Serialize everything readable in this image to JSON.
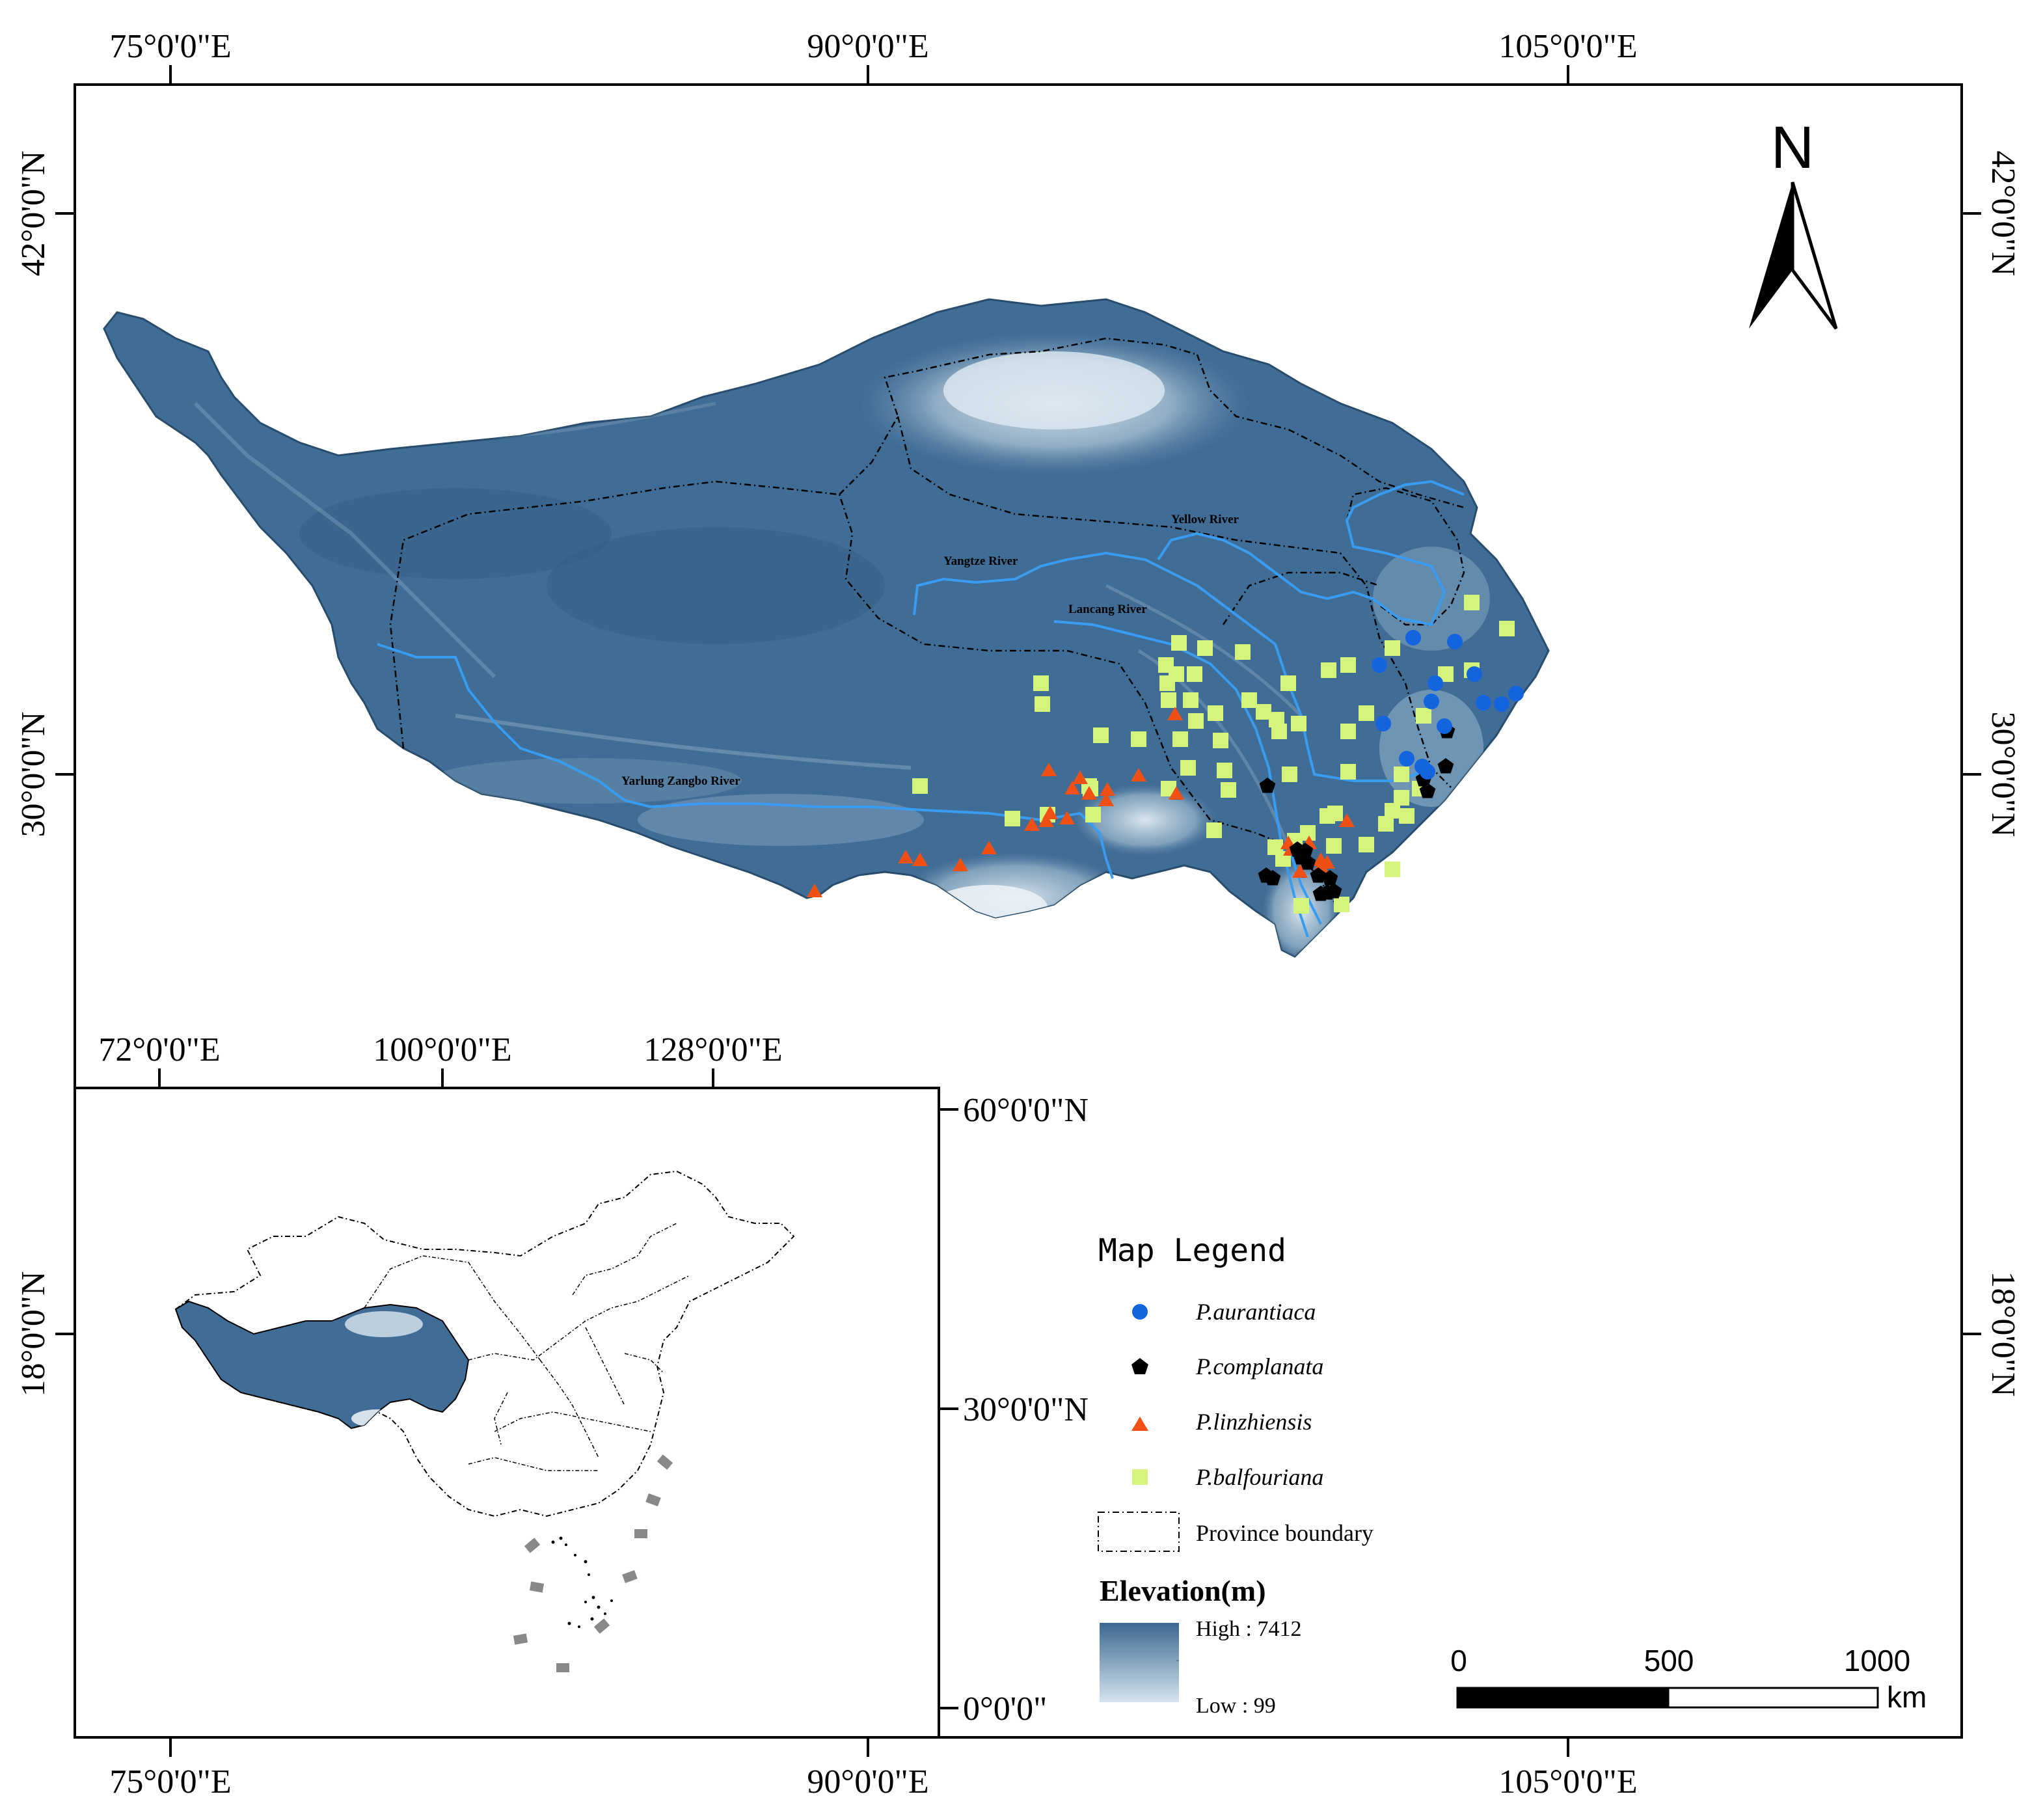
{
  "main_map": {
    "top_axis": [
      "75°0'0\"E",
      "90°0'0\"E",
      "105°0'0\"E"
    ],
    "bottom_axis": [
      "75°0'0\"E",
      "90°0'0\"E",
      "105°0'0\"E"
    ],
    "left_axis": [
      "42°0'0\"N",
      "30°0'0\"N",
      "18°0'0\"N"
    ],
    "right_axis": [
      "42°0'0\"N",
      "30°0'0\"N",
      "18°0'0\"N"
    ],
    "rivers": [
      "Yellow River",
      "Yangtze River",
      "Lancang River",
      "Yarlung Zangbo River"
    ],
    "north_label": "N",
    "elevation_colors": {
      "high": "#3c6891",
      "low": "#d4e4ee"
    }
  },
  "inset_map": {
    "top_axis": [
      "72°0'0\"E",
      "100°0'0\"E",
      "128°0'0\"E"
    ],
    "right_axis": [
      "60°0'0\"N",
      "30°0'0\"N",
      "0°0'0\""
    ]
  },
  "legend": {
    "title": "Map Legend",
    "items": [
      {
        "label": "P.aurantiaca",
        "shape": "circle",
        "color": "#1464e0"
      },
      {
        "label": "P.complanata",
        "shape": "pentagon",
        "color": "#000000"
      },
      {
        "label": "P.linzhiensis",
        "shape": "triangle",
        "color": "#f05014"
      },
      {
        "label": "P.balfouriana",
        "shape": "square",
        "color": "#d4f47c"
      }
    ],
    "boundary_label": "Province boundary",
    "elevation_title": "Elevation(m)",
    "elevation_high": "High : 7412",
    "elevation_low": "Low : 99"
  },
  "scale_bar": {
    "labels": [
      "0",
      "500",
      "1000"
    ],
    "unit": "km"
  }
}
